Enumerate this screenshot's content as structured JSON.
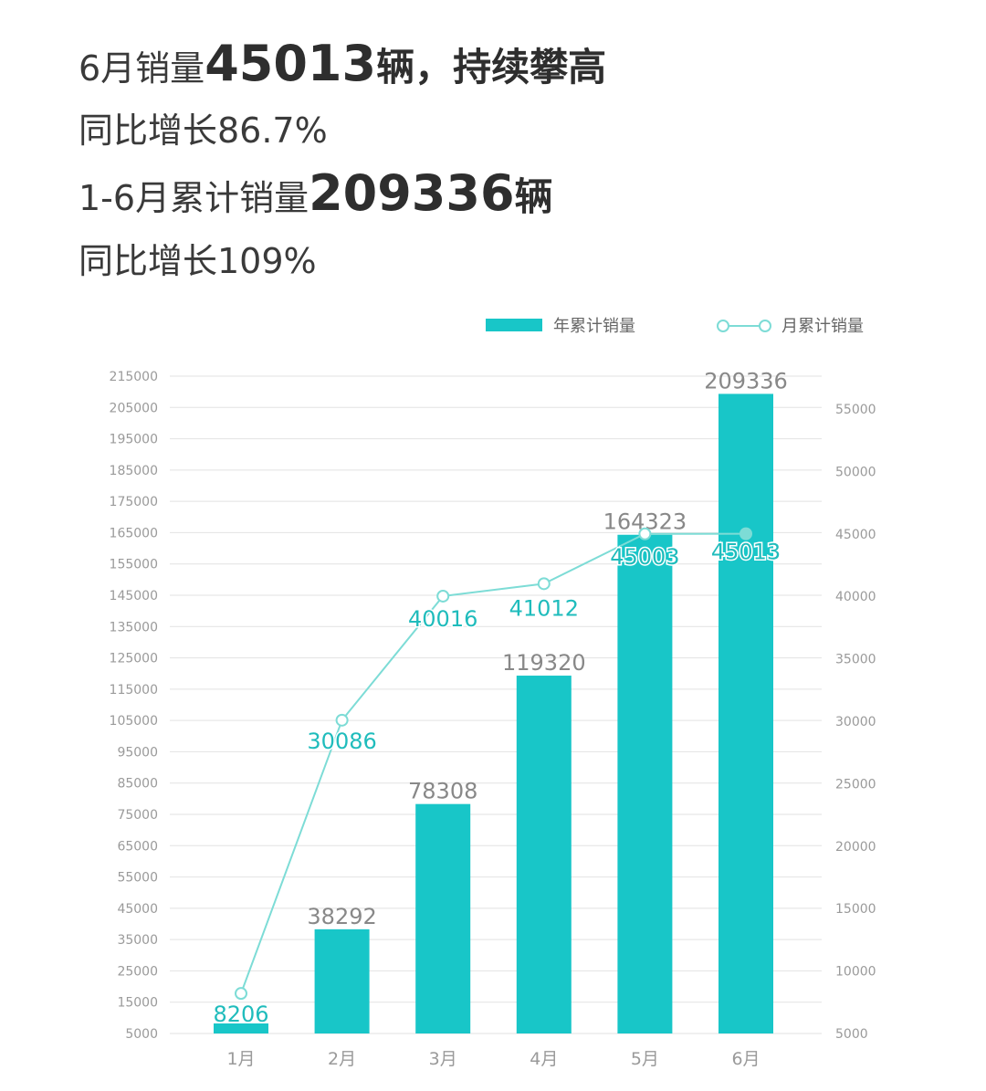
{
  "headline": {
    "line1_prefix": "6月销量",
    "line1_number": "45013",
    "line1_suffix": "辆，持续攀高",
    "line2": "同比增长86.7%",
    "line3_prefix": "1-6月累计销量",
    "line3_number": "209336",
    "line3_suffix": "辆",
    "line4": "同比增长109%"
  },
  "colors": {
    "bar": "#18c6c8",
    "line": "#7ddcd6",
    "line_label": "#1fbcbc",
    "bar_label": "#888888",
    "axis_text": "#9a9a9a",
    "grid": "#e2e2e2"
  },
  "chart_data": {
    "type": "bar",
    "categories": [
      "1月",
      "2月",
      "3月",
      "4月",
      "5月",
      "6月"
    ],
    "series": [
      {
        "name": "年累计销量",
        "type": "bar",
        "axis": "left",
        "values": [
          8206,
          38292,
          78308,
          119320,
          164323,
          209336
        ]
      },
      {
        "name": "月累计销量",
        "type": "line",
        "axis": "right",
        "values": [
          8206,
          30086,
          40016,
          41012,
          45003,
          45013
        ]
      }
    ],
    "y_left": {
      "ticks": [
        215000,
        205000,
        195000,
        185000,
        175000,
        165000,
        155000,
        145000,
        135000,
        125000,
        115000,
        105000,
        95000,
        85000,
        75000,
        65000,
        55000,
        45000,
        35000,
        25000,
        15000,
        5000
      ],
      "range": [
        5000,
        215000
      ]
    },
    "y_right": {
      "ticks": [
        55000,
        50000,
        45000,
        40000,
        35000,
        30000,
        25000,
        20000,
        15000,
        10000,
        5000
      ],
      "range": [
        5000,
        55000
      ]
    },
    "grid": true,
    "legend_position": "top-right"
  }
}
